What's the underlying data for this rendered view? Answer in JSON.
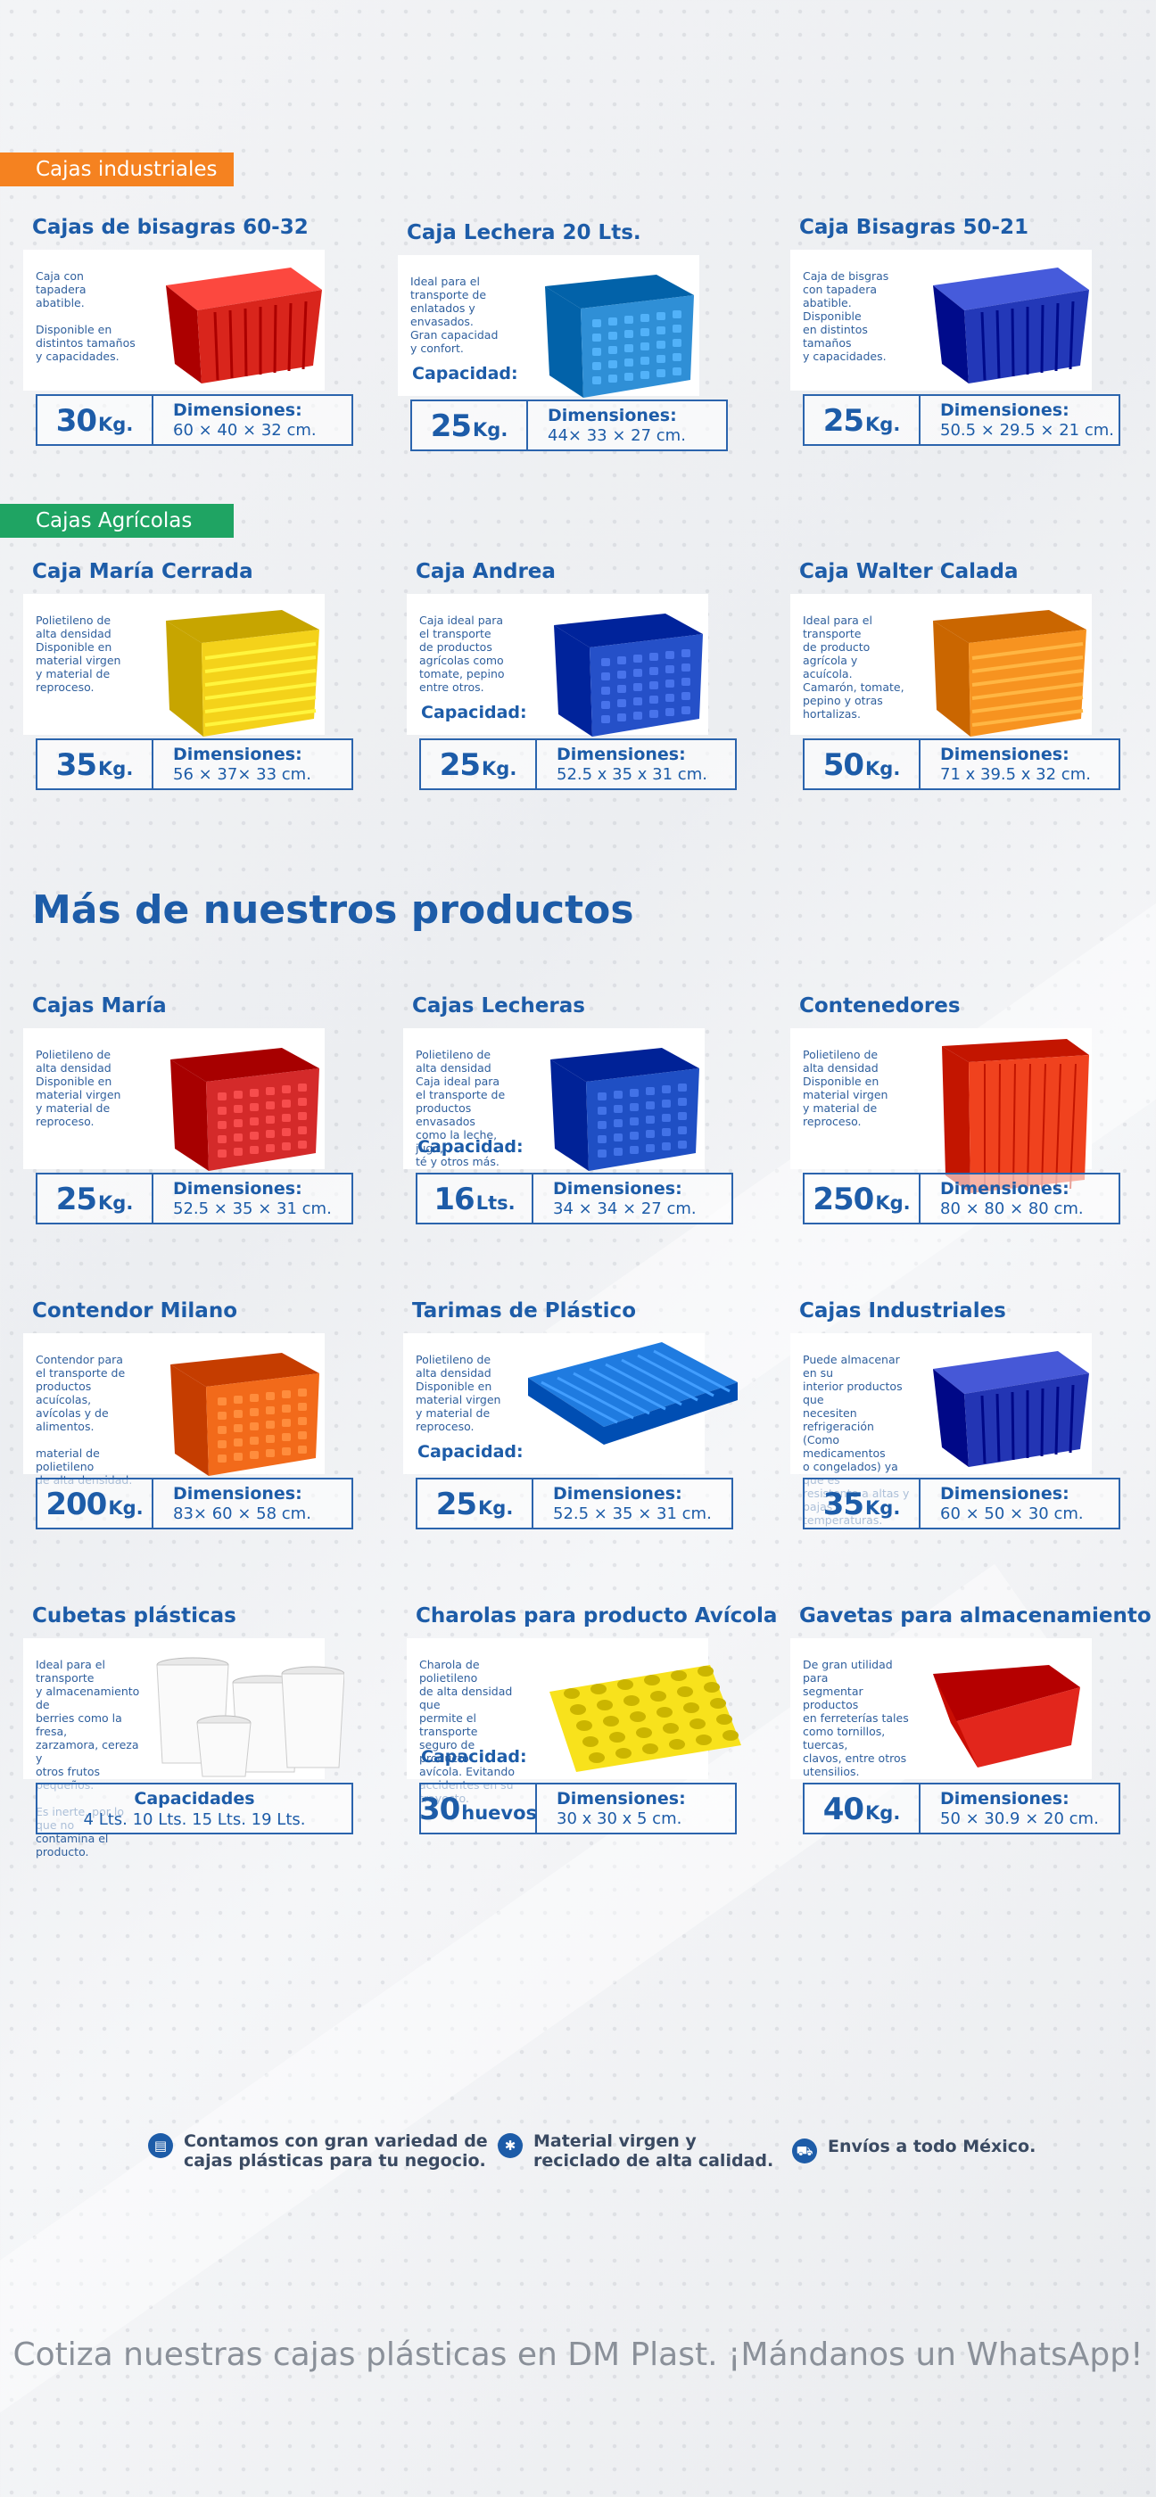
{
  "sections": {
    "industrial_tag": "Cajas industriales",
    "agricultural_tag": "Cajas Agrícolas",
    "more_title": "Más de nuestros productos"
  },
  "capacity_label": "Capacidad:",
  "dims_label": "Dimensiones:",
  "products": [
    {
      "title": "Cajas de bisagras 60-32",
      "desc": "Caja con\ntapadera\nabatible.\n\nDisponible en\ndistintos tamaños\ny capacidades.",
      "cap_num": "30",
      "cap_unit": "Kg.",
      "dims": "60 × 40 × 32 cm.",
      "show_cap_label": false,
      "color": "#d9251c",
      "shape": "lidded-bin"
    },
    {
      "title": "Caja Lechera 20 Lts.",
      "desc": "Ideal para el\ntransporte de\nenlatados y\nenvasados.\nGran capacidad\ny confort.",
      "cap_num": "25",
      "cap_unit": "Kg.",
      "dims": "44× 33 × 27 cm.",
      "show_cap_label": true,
      "color": "#2f8fd6",
      "shape": "crate"
    },
    {
      "title": "Caja Bisagras 50-21",
      "desc": "Caja de bisgras\ncon tapadera\nabatible. Disponible\nen distintos tamaños\ny capacidades.",
      "cap_num": "25",
      "cap_unit": "Kg.",
      "dims": "50.5 × 29.5 × 21 cm.",
      "show_cap_label": false,
      "color": "#2338b8",
      "shape": "lidded-bin"
    },
    {
      "title": "Caja María Cerrada",
      "desc": "Polietileno de\nalta densidad\nDisponible en\nmaterial virgen\ny material de\nreproceso.",
      "cap_num": "35",
      "cap_unit": "Kg.",
      "dims": "56 × 37× 33 cm.",
      "show_cap_label": false,
      "color": "#f4d21a",
      "shape": "stack"
    },
    {
      "title": "Caja Andrea",
      "desc": "Caja ideal para\nel transporte\nde productos\nagrícolas como\ntomate, pepino\nentre otros.",
      "cap_num": "25",
      "cap_unit": "Kg.",
      "dims": "52.5 x 35 x 31 cm.",
      "show_cap_label": true,
      "color": "#2550c8",
      "shape": "crate"
    },
    {
      "title": "Caja Walter Calada",
      "desc": "Ideal para el transporte\nde producto\nagrícola y\nacuícola.\nCamarón, tomate,\npepino y otras\nhortalizas.",
      "cap_num": "50",
      "cap_unit": "Kg.",
      "dims": "71 x 39.5 x 32 cm.",
      "show_cap_label": false,
      "color": "#f79320",
      "shape": "stack"
    },
    {
      "title": "Cajas María",
      "desc": "Polietileno de\nalta densidad\nDisponible en\nmaterial virgen\ny material de\nreproceso.",
      "cap_num": "25",
      "cap_unit": "Kg.",
      "dims": "52.5 × 35 × 31 cm.",
      "show_cap_label": false,
      "color": "#d42a2a",
      "shape": "crate"
    },
    {
      "title": "Cajas Lecheras",
      "desc": "Polietileno de\nalta densidad\nCaja ideal para\nel transporte de\nproductos envasados\ncomo la leche, jugo,\nté y otros más.",
      "cap_num": "16",
      "cap_unit": "Lts.",
      "dims": "34 × 34 × 27 cm.",
      "show_cap_label": true,
      "color": "#1f4fc4",
      "shape": "crate"
    },
    {
      "title": "Contenedores",
      "desc": "Polietileno de\nalta densidad\nDisponible en\nmaterial virgen\ny material de\nreproceso.",
      "cap_num": "250",
      "cap_unit": "Kg.",
      "dims": "80 × 80 × 80 cm.",
      "show_cap_label": false,
      "color": "#f0421e",
      "shape": "bin"
    },
    {
      "title": "Contendor Milano",
      "desc": "Contendor para\nel transporte de\nproductos acuícolas,\navícolas y de alimentos.\n\nmaterial de polietileno\nde alta densidad.",
      "cap_num": "200",
      "cap_unit": "Kg.",
      "dims": "83× 60 × 58 cm.",
      "show_cap_label": false,
      "color": "#f26a1a",
      "shape": "crate"
    },
    {
      "title": "Tarimas de Plástico",
      "desc": "Polietileno de\nalta densidad\nDisponible en\nmaterial virgen\ny material de\nreproceso.",
      "cap_num": "25",
      "cap_unit": "Kg.",
      "dims": "52.5 × 35 × 31 cm.",
      "show_cap_label": true,
      "color": "#1f7be0",
      "shape": "pallet"
    },
    {
      "title": "Cajas Industriales",
      "desc": "Puede almacenar en su\ninterior productos que\nnecesiten refrigeración\n(Como medicamentos\no congelados) ya que es\nresistente a altas y bajas\ntemperaturas.",
      "cap_num": "35",
      "cap_unit": "Kg.",
      "dims": "60 × 50 × 30 cm.",
      "show_cap_label": false,
      "color": "#2335b4",
      "shape": "lidded-bin"
    },
    {
      "title": "Cubetas plásticas",
      "desc": "Ideal para el transporte\ny almacenamiento de\nberries como la fresa,\nzarzamora, cereza y\notros frutos pequeños.\n\nEs inerte, por lo que no\ncontamina el producto.",
      "full_label": "Capacidades",
      "full_value": "4 Lts. 10 Lts. 15 Lts. 19 Lts.",
      "show_cap_label": false,
      "color": "#f2f2f2",
      "shape": "buckets"
    },
    {
      "title": "Charolas para producto Avícola",
      "desc": "Charola de polietileno\nde alta densidad que\npermite el transporte\nseguro de producto\navícola. Evitando\naccidentes en su\ntrayecto.",
      "cap_num": "30",
      "cap_unit": "huevos",
      "dims": "30 x 30 x 5 cm.",
      "show_cap_label": true,
      "color": "#f8e21c",
      "shape": "tray"
    },
    {
      "title": "Gavetas para almacenamiento",
      "desc": "De gran utilidad para\nsegmentar productos\nen ferreterías tales\ncomo tornillos, tuercas,\nclavos, entre otros\nutensilios.",
      "cap_num": "40",
      "cap_unit": "Kg.",
      "dims": "50 × 30.9 × 20 cm.",
      "show_cap_label": false,
      "color": "#e2261c",
      "shape": "gaveta"
    }
  ],
  "features": [
    {
      "text": "Contamos con gran variedad de\ncajas plásticas para tu negocio.",
      "icon": "box-icon"
    },
    {
      "text": "Material virgen y\nreciclado de alta calidad.",
      "icon": "recycle-icon"
    },
    {
      "text": "Envíos a todo México.",
      "icon": "truck-icon"
    }
  ],
  "cta": "Cotiza nuestras cajas plásticas en DM Plast. ¡Mándanos un WhatsApp!",
  "colors": {
    "brand_blue": "#1d5ca8",
    "tag_orange": "#f58220",
    "tag_green": "#1fa463"
  }
}
